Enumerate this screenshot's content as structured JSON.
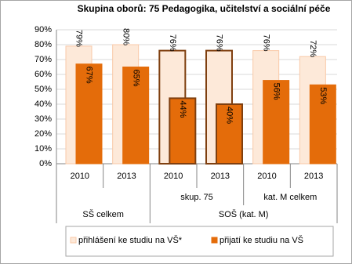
{
  "chart_data": {
    "type": "bar",
    "title": "Skupina oborů: 75 Pedagogika, učitelství a sociální péče",
    "category_levels": [
      [
        "2010",
        "2013",
        "2010",
        "2013",
        "2010",
        "2013"
      ],
      [
        null,
        null,
        "skup. 75",
        "skup. 75",
        "kat. M celkem",
        "kat. M celkem"
      ],
      [
        "SŠ celkem",
        "SŠ celkem",
        "SOŠ (kat. M)",
        "SOŠ (kat. M)",
        "SOŠ (kat. M)",
        "SOŠ (kat. M)"
      ]
    ],
    "highlight": [
      false,
      false,
      true,
      true,
      false,
      false
    ],
    "highlight_color": "#7f3f0f",
    "series": [
      {
        "name": "přihlášení ke studiu na VŠ*",
        "color": "#fde9d9",
        "border": "#f9c9a8",
        "values": [
          79,
          80,
          76,
          76,
          76,
          72
        ],
        "value_labels": [
          "79%",
          "80%",
          "76%",
          "76%",
          "76%",
          "72%"
        ]
      },
      {
        "name": "přijatí ke studiu na VŠ",
        "color": "#e46c0a",
        "border": "#e46c0a",
        "values": [
          67,
          65,
          44,
          40,
          56,
          53
        ],
        "value_labels": [
          "67%",
          "65%",
          "44%",
          "40%",
          "56%",
          "53%"
        ]
      }
    ],
    "ylim": [
      0,
      90
    ],
    "yticks": [
      {
        "value": 0,
        "label": "0%"
      },
      {
        "value": 10,
        "label": "10%"
      },
      {
        "value": 20,
        "label": "20%"
      },
      {
        "value": 30,
        "label": "30%"
      },
      {
        "value": 40,
        "label": "40%"
      },
      {
        "value": 50,
        "label": "50%"
      },
      {
        "value": 60,
        "label": "60%"
      },
      {
        "value": 70,
        "label": "70%"
      },
      {
        "value": 80,
        "label": "80%"
      },
      {
        "value": 90,
        "label": "90%"
      }
    ],
    "grid": true,
    "legend": "bottom"
  }
}
